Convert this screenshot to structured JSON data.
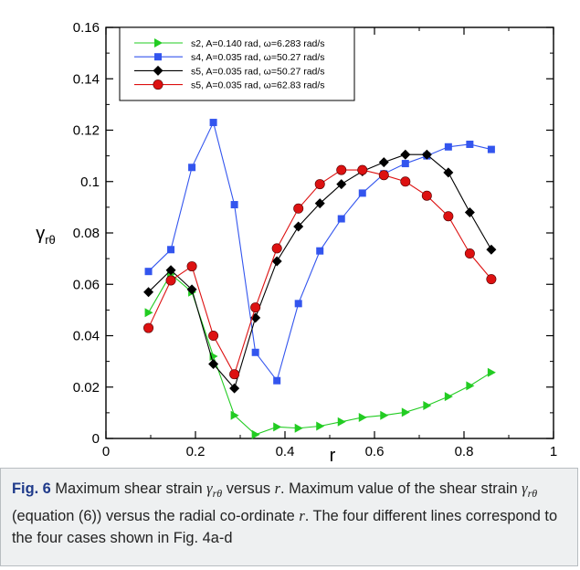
{
  "chart_data": {
    "type": "line",
    "xlabel": "r",
    "ylabel_main": "γ",
    "ylabel_sub": "rθ",
    "xlim": [
      0,
      1
    ],
    "ylim": [
      0,
      0.16
    ],
    "xticks": [
      0,
      0.2,
      0.4,
      0.6,
      0.8,
      1
    ],
    "xtick_labels": [
      "0",
      "0.2",
      "0.4",
      "0.6",
      "0.8",
      "1"
    ],
    "yticks": [
      0,
      0.02,
      0.04,
      0.06,
      0.08,
      0.1,
      0.12,
      0.14,
      0.16
    ],
    "ytick_labels": [
      "0",
      "0.02",
      "0.04",
      "0.06",
      "0.08",
      "0.1",
      "0.12",
      "0.14",
      "0.16"
    ],
    "grid": false,
    "legend_position": "top-left",
    "series": [
      {
        "name": "s2, A=0.140 rad, ω=6.283 rad/s",
        "color": "#22cc22",
        "marker": "triangle-right",
        "x": [
          0.095,
          0.145,
          0.192,
          0.24,
          0.287,
          0.334,
          0.382,
          0.43,
          0.478,
          0.526,
          0.573,
          0.621,
          0.669,
          0.717,
          0.765,
          0.813,
          0.861
        ],
        "y": [
          0.049,
          0.064,
          0.057,
          0.032,
          0.009,
          0.0015,
          0.0045,
          0.004,
          0.0048,
          0.0065,
          0.0082,
          0.009,
          0.0102,
          0.0128,
          0.0163,
          0.0205,
          0.0257
        ]
      },
      {
        "name": "s4, A=0.035 rad, ω=50.27 rad/s",
        "color": "#3355ee",
        "marker": "square",
        "x": [
          0.095,
          0.145,
          0.192,
          0.24,
          0.287,
          0.334,
          0.382,
          0.43,
          0.478,
          0.526,
          0.573,
          0.621,
          0.669,
          0.717,
          0.765,
          0.813,
          0.861
        ],
        "y": [
          0.065,
          0.0735,
          0.1055,
          0.123,
          0.091,
          0.0335,
          0.0225,
          0.0525,
          0.073,
          0.0855,
          0.0955,
          0.103,
          0.107,
          0.11,
          0.1135,
          0.1145,
          0.1125
        ]
      },
      {
        "name": "s5, A=0.035 rad, ω=50.27 rad/s",
        "color": "#000000",
        "marker": "diamond",
        "x": [
          0.095,
          0.145,
          0.192,
          0.24,
          0.287,
          0.334,
          0.382,
          0.43,
          0.478,
          0.526,
          0.573,
          0.621,
          0.669,
          0.717,
          0.765,
          0.813,
          0.861
        ],
        "y": [
          0.057,
          0.0655,
          0.058,
          0.029,
          0.0195,
          0.047,
          0.069,
          0.0825,
          0.0915,
          0.099,
          0.104,
          0.1075,
          0.1105,
          0.1105,
          0.1035,
          0.088,
          0.0735
        ]
      },
      {
        "name": "s5, A=0.035 rad, ω=62.83 rad/s",
        "color": "#dd1111",
        "marker": "circle",
        "x": [
          0.095,
          0.145,
          0.192,
          0.24,
          0.287,
          0.334,
          0.382,
          0.43,
          0.478,
          0.526,
          0.573,
          0.621,
          0.669,
          0.717,
          0.765,
          0.813,
          0.861
        ],
        "y": [
          0.043,
          0.0615,
          0.067,
          0.04,
          0.025,
          0.051,
          0.074,
          0.0895,
          0.099,
          0.1045,
          0.1045,
          0.1025,
          0.1,
          0.0945,
          0.0865,
          0.072,
          0.062
        ]
      }
    ]
  },
  "caption": {
    "fig_label": "Fig. 6",
    "text_1": " Maximum shear strain ",
    "gamma": "γ",
    "gamma_sub": "rθ",
    "text_2": " versus ",
    "r": "r",
    "text_3": ". Maximum value of the shear strain ",
    "text_4": " (equation (6)) versus the radial co-ordinate ",
    "text_5": ". The four different lines correspond to the four cases shown in Fig. 4a-d"
  }
}
